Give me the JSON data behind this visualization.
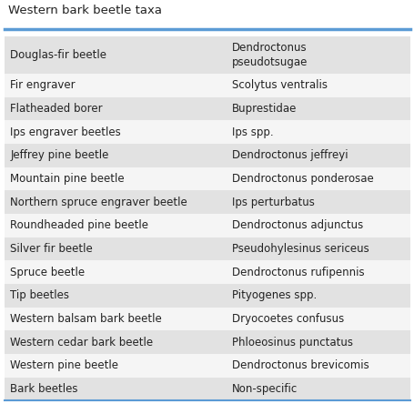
{
  "title": "Western bark beetle taxa",
  "rows": [
    [
      "Douglas-fir beetle",
      "Dendroctonus\npseudotsugae"
    ],
    [
      "Fir engraver",
      "Scolytus ventralis"
    ],
    [
      "Flatheaded borer",
      "Buprestidae"
    ],
    [
      "Ips engraver beetles",
      "Ips spp."
    ],
    [
      "Jeffrey pine beetle",
      "Dendroctonus jeffreyi"
    ],
    [
      "Mountain pine beetle",
      "Dendroctonus ponderosae"
    ],
    [
      "Northern spruce engraver beetle",
      "Ips perturbatus"
    ],
    [
      "Roundheaded pine beetle",
      "Dendroctonus adjunctus"
    ],
    [
      "Silver fir beetle",
      "Pseudohylesinus sericeus"
    ],
    [
      "Spruce beetle",
      "Dendroctonus rufipennis"
    ],
    [
      "Tip beetles",
      "Pityogenes spp."
    ],
    [
      "Western balsam bark beetle",
      "Dryocoetes confusus"
    ],
    [
      "Western cedar bark beetle",
      "Phloeosinus punctatus"
    ],
    [
      "Western pine beetle",
      "Dendroctonus brevicomis"
    ],
    [
      "Bark beetles",
      "Non-specific"
    ]
  ],
  "bg_color_light": "#e2e2e2",
  "bg_color_white": "#f5f5f5",
  "title_color": "#222222",
  "text_color": "#222222",
  "line_color": "#5b9bd5",
  "font_size": 8.5,
  "title_font_size": 9.5,
  "col_split": 0.545,
  "fig_bg": "#ffffff"
}
